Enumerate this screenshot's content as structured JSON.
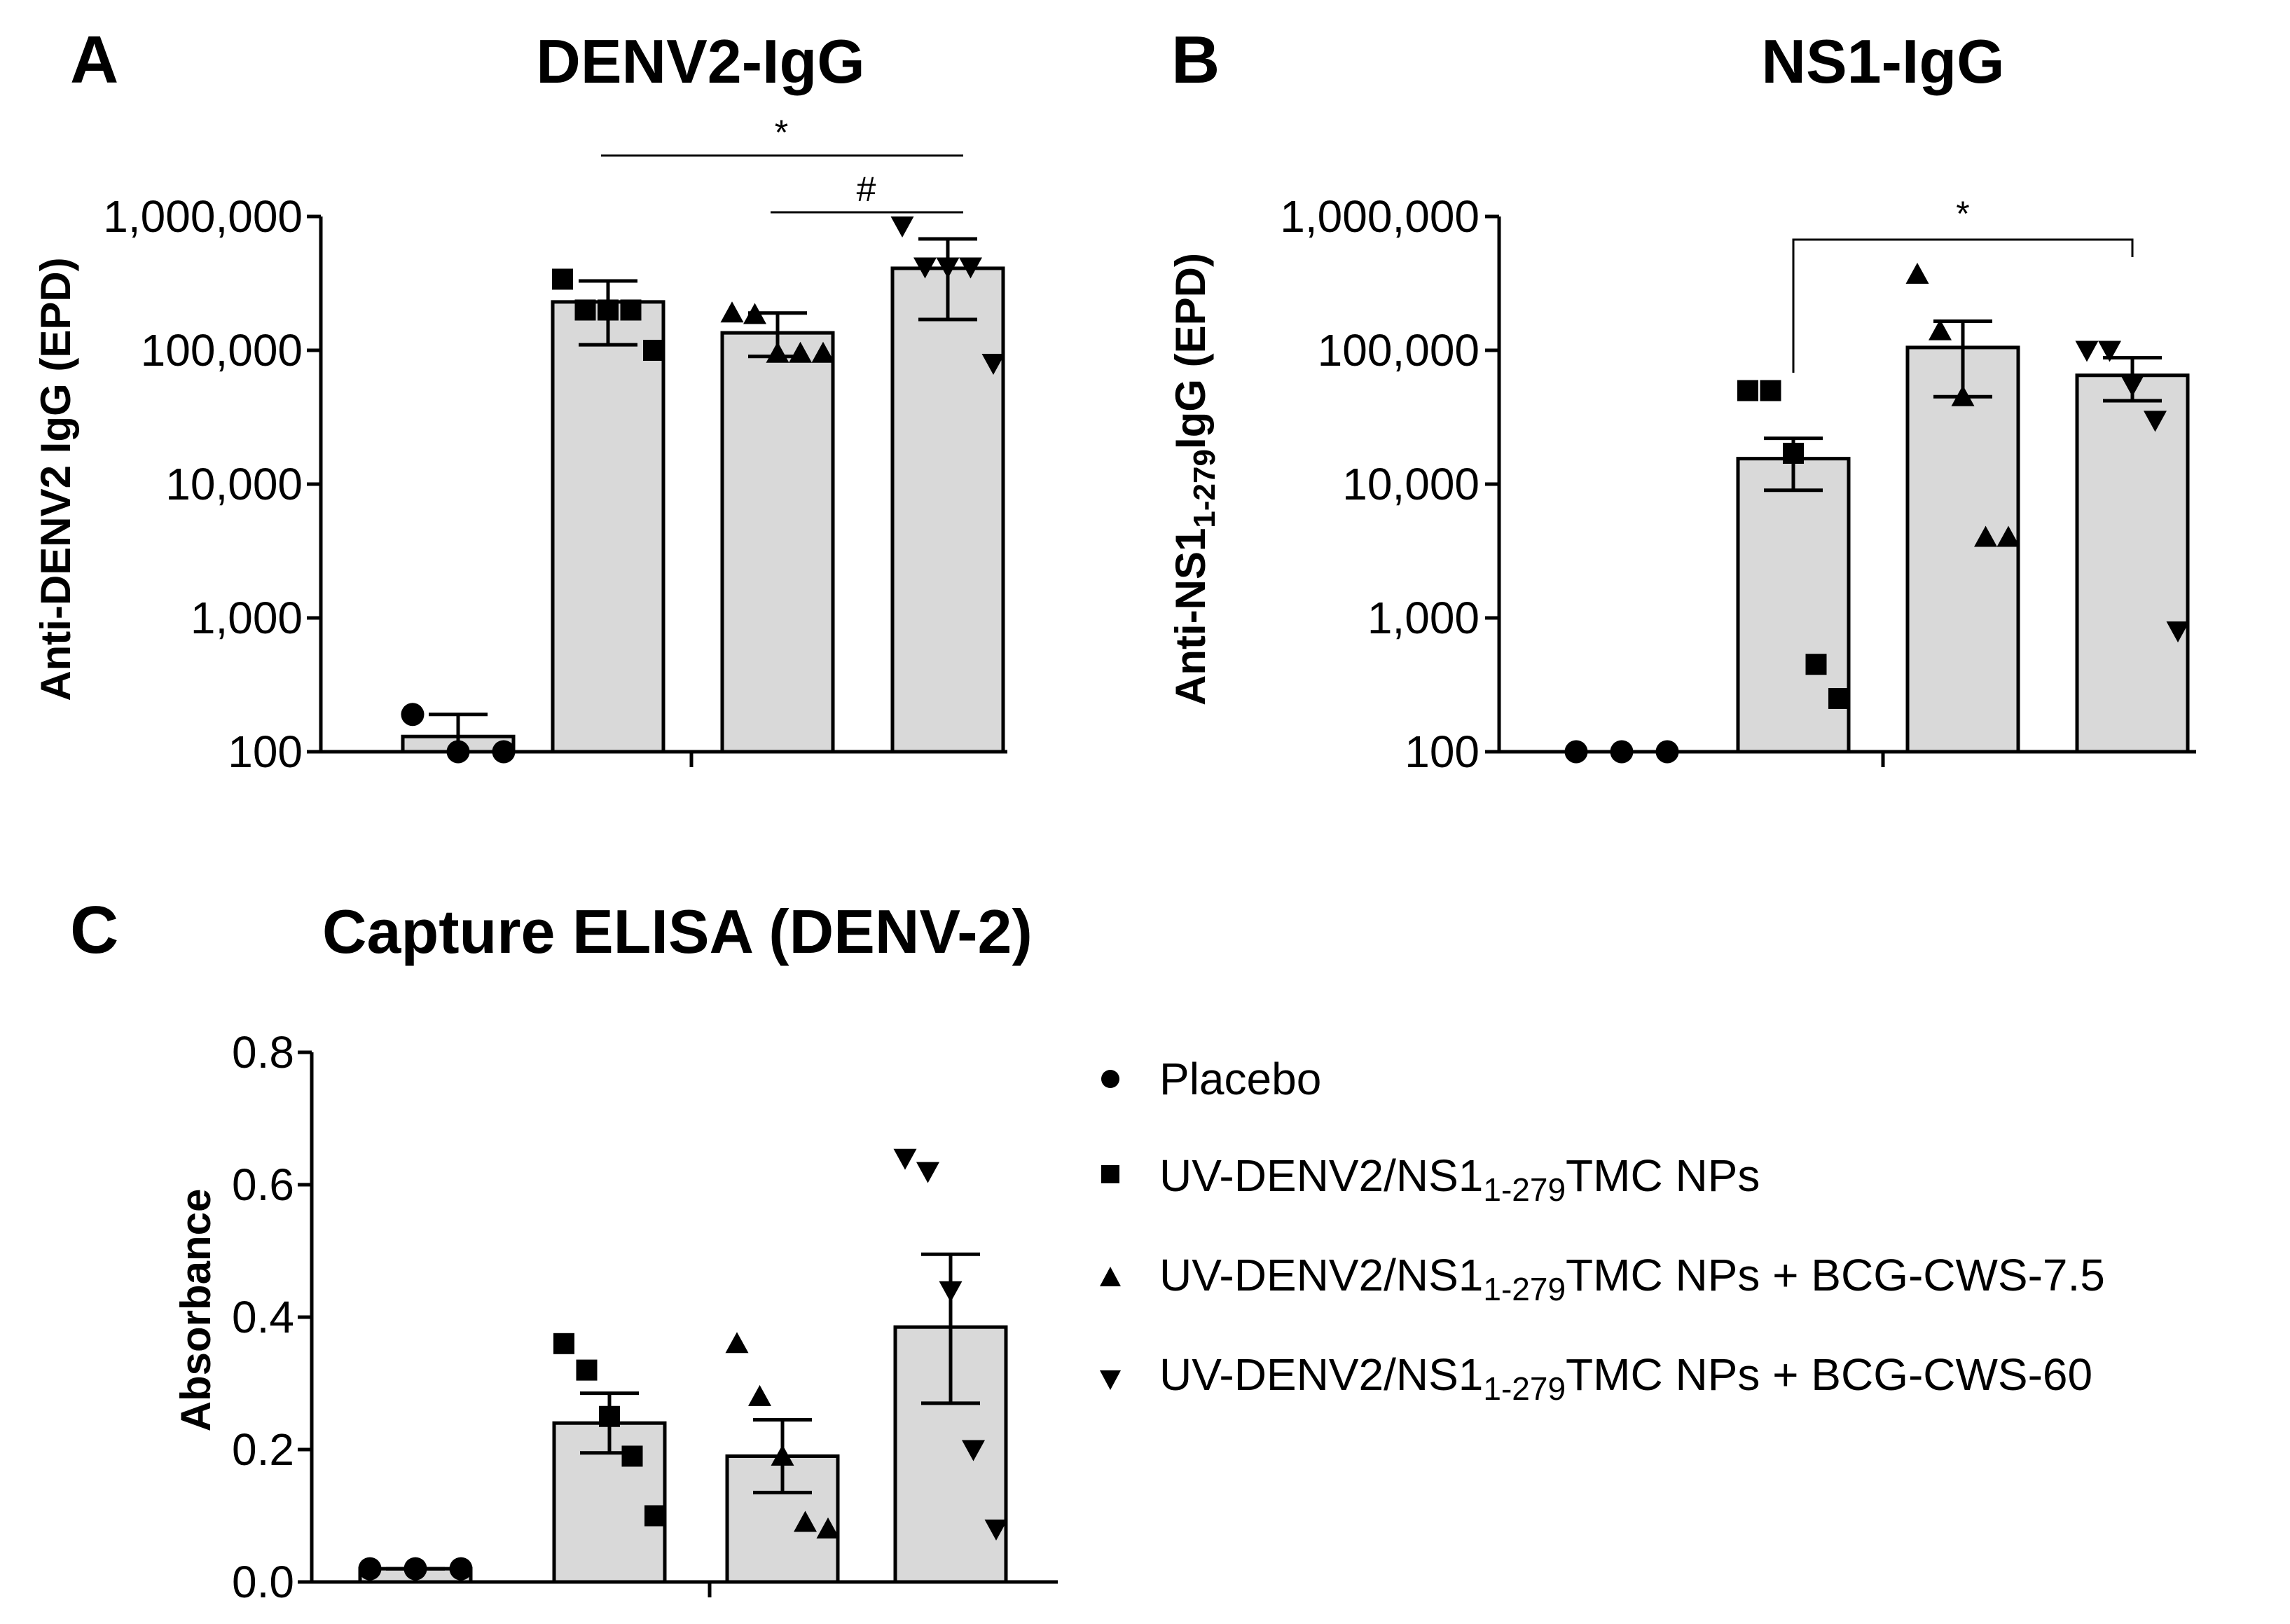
{
  "legend": [
    {
      "marker": "circle",
      "text": "Placebo",
      "sub": ""
    },
    {
      "marker": "square",
      "text": "UV-DENV2/NS1",
      "sub": "1-279",
      "suffix": "TMC NPs"
    },
    {
      "marker": "triangle-up",
      "text": "UV-DENV2/NS1",
      "sub": "1-279",
      "suffix": "TMC NPs + BCG-CWS-7.5"
    },
    {
      "marker": "triangle-down",
      "text": "UV-DENV2/NS1",
      "sub": "1-279",
      "suffix": "TMC NPs + BCG-CWS-60"
    }
  ],
  "chart_data": [
    {
      "panel": "A",
      "type": "bar",
      "scale": "log",
      "title": "DENV2-IgG",
      "ylabel": "Anti-DENV2 IgG (EPD)",
      "ylim": [
        100,
        1000000
      ],
      "yticks": [
        "100",
        "1,000",
        "10,000",
        "100,000",
        "1,000,000"
      ],
      "tick_values": [
        100,
        1000,
        10000,
        100000,
        1000000
      ],
      "groups": [
        {
          "name": "Placebo",
          "marker": "circle",
          "mean": 130,
          "err_low": 100,
          "err_high": 190,
          "points": [
            190,
            100,
            100
          ]
        },
        {
          "name": "UV-DENV2/NS1 1-279 TMC NPs",
          "marker": "square",
          "mean": 230000,
          "err_low": 110000,
          "err_high": 330000,
          "points": [
            340000,
            200000,
            200000,
            200000,
            100000
          ]
        },
        {
          "name": "UV-DENV2/NS1 1-279 TMC NPs + BCG-CWS-7.5",
          "marker": "triangle-up",
          "mean": 135000,
          "err_low": 90000,
          "err_high": 190000,
          "points": [
            190000,
            185000,
            95000,
            95000,
            95000
          ]
        },
        {
          "name": "UV-DENV2/NS1 1-279 TMC NPs + BCG-CWS-60",
          "marker": "triangle-down",
          "mean": 410000,
          "err_low": 170000,
          "err_high": 680000,
          "points": [
            850000,
            420000,
            420000,
            420000,
            80000
          ]
        }
      ],
      "significance": [
        {
          "from": 1,
          "to": 3,
          "label": "*",
          "style": "line"
        },
        {
          "from": 2,
          "to": 3,
          "label": "#",
          "style": "line"
        }
      ]
    },
    {
      "panel": "B",
      "type": "bar",
      "scale": "log",
      "title": "NS1-IgG",
      "ylabel": "Anti-NS1",
      "ylabel_sub": "1-279",
      "ylabel_suffix": "IgG (EPD)",
      "ylim": [
        100,
        1000000
      ],
      "yticks": [
        "100",
        "1,000",
        "10,000",
        "100,000",
        "1,000,000"
      ],
      "tick_values": [
        100,
        1000,
        10000,
        100000,
        1000000
      ],
      "groups": [
        {
          "name": "Placebo",
          "marker": "circle",
          "mean": 100,
          "err_low": 100,
          "err_high": 100,
          "points": [
            100,
            100,
            100
          ]
        },
        {
          "name": "UV-DENV2/NS1 1-279 TMC NPs",
          "marker": "square",
          "mean": 15500,
          "err_low": 9000,
          "err_high": 22000,
          "points": [
            50000,
            50000,
            17000,
            450,
            250
          ]
        },
        {
          "name": "UV-DENV2/NS1 1-279 TMC NPs + BCG-CWS-7.5",
          "marker": "triangle-up",
          "mean": 105000,
          "err_low": 45000,
          "err_high": 165000,
          "points": [
            370000,
            140000,
            45000,
            4000,
            4000
          ]
        },
        {
          "name": "UV-DENV2/NS1 1-279 TMC NPs + BCG-CWS-60",
          "marker": "triangle-down",
          "mean": 65000,
          "err_low": 42000,
          "err_high": 88000,
          "points": [
            100000,
            100000,
            55000,
            30000,
            800
          ]
        }
      ],
      "significance": [
        {
          "from": 1,
          "to": 3,
          "label": "*",
          "style": "bracket"
        }
      ]
    },
    {
      "panel": "C",
      "type": "bar",
      "scale": "linear",
      "title": "Capture ELISA (DENV-2)",
      "ylabel": "Absorbance",
      "ylim": [
        0,
        0.8
      ],
      "yticks": [
        "0.0",
        "0.2",
        "0.4",
        "0.6",
        "0.8"
      ],
      "tick_values": [
        0,
        0.2,
        0.4,
        0.6,
        0.8
      ],
      "groups": [
        {
          "name": "Placebo",
          "marker": "circle",
          "mean": 0.02,
          "err_low": 0.02,
          "err_high": 0.02,
          "points": [
            0.02,
            0.02,
            0.02
          ]
        },
        {
          "name": "UV-DENV2/NS1 1-279 TMC NPs",
          "marker": "square",
          "mean": 0.24,
          "err_low": 0.195,
          "err_high": 0.285,
          "points": [
            0.36,
            0.32,
            0.25,
            0.19,
            0.1
          ]
        },
        {
          "name": "UV-DENV2/NS1 1-279 TMC NPs + BCG-CWS-7.5",
          "marker": "triangle-up",
          "mean": 0.19,
          "err_low": 0.135,
          "err_high": 0.245,
          "points": [
            0.36,
            0.28,
            0.19,
            0.09,
            0.08
          ]
        },
        {
          "name": "UV-DENV2/NS1 1-279 TMC NPs + BCG-CWS-60",
          "marker": "triangle-down",
          "mean": 0.385,
          "err_low": 0.27,
          "err_high": 0.495,
          "points": [
            0.64,
            0.62,
            0.44,
            0.2,
            0.08
          ]
        }
      ],
      "significance": []
    }
  ]
}
